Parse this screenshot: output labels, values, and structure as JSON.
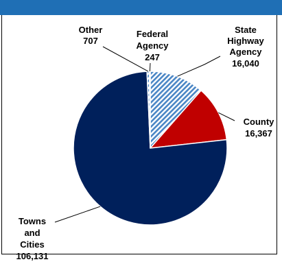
{
  "chart_data": {
    "type": "pie",
    "slices": [
      {
        "label_lines": [
          "State",
          "Highway",
          "Agency"
        ],
        "value": 16040,
        "display": "16,040",
        "color": "#8fb6dd",
        "pattern": "diagonal-stripes"
      },
      {
        "label_lines": [
          "County"
        ],
        "value": 16367,
        "display": "16,367",
        "color": "#c00000",
        "pattern": "solid"
      },
      {
        "label_lines": [
          "Towns",
          "and",
          "Cities"
        ],
        "value": 106131,
        "display": "106,131",
        "color": "#00205b",
        "pattern": "solid"
      },
      {
        "label_lines": [
          "Other"
        ],
        "value": 707,
        "display": "707",
        "color": "#8fb6dd",
        "pattern": "diagonal-stripes"
      },
      {
        "label_lines": [
          "Federal",
          "Agency"
        ],
        "value": 247,
        "display": "247",
        "color": "#8fb6dd",
        "pattern": "diagonal-stripes"
      }
    ],
    "start_angle_deg": 0,
    "direction": "clockwise"
  }
}
